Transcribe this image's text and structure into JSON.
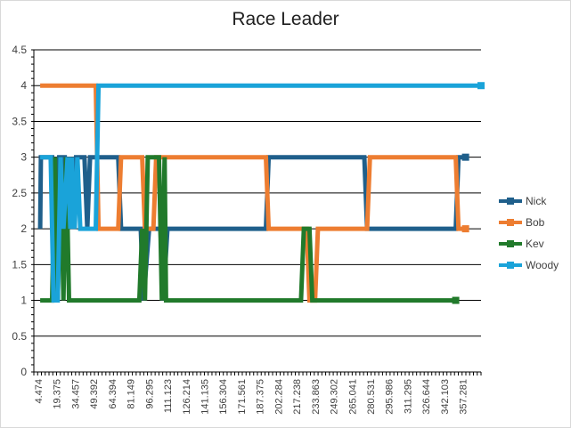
{
  "chart_data": {
    "type": "line",
    "title": "Race Leader",
    "xlabel": "",
    "ylabel": "",
    "ylim": [
      0,
      4.5
    ],
    "yticks": [
      "0",
      "0.5",
      "1",
      "1.5",
      "2",
      "2.5",
      "3",
      "3.5",
      "4",
      "4.5"
    ],
    "xticks": [
      "4.474",
      "19.375",
      "34.457",
      "49.392",
      "64.394",
      "81.149",
      "96.295",
      "111.123",
      "126.214",
      "141.135",
      "156.304",
      "171.561",
      "187.375",
      "202.284",
      "217.238",
      "233.863",
      "249.302",
      "265.041",
      "280.531",
      "295.986",
      "311.295",
      "326.644",
      "342.103",
      "357.281"
    ],
    "grid": "horizontal",
    "legend_position": "right",
    "series": [
      {
        "name": "Nick",
        "color": "#1f5f8b",
        "points": [
          [
            4.474,
            2
          ],
          [
            5,
            3
          ],
          [
            13,
            3
          ],
          [
            14,
            2
          ],
          [
            18,
            3
          ],
          [
            22,
            3
          ],
          [
            23,
            2
          ],
          [
            25,
            3
          ],
          [
            28,
            2
          ],
          [
            30,
            3
          ],
          [
            36,
            3
          ],
          [
            38,
            2
          ],
          [
            40,
            3
          ],
          [
            60,
            3
          ],
          [
            62,
            2
          ],
          [
            76,
            2
          ],
          [
            78,
            1
          ],
          [
            82,
            2
          ],
          [
            90,
            2
          ],
          [
            92,
            1
          ],
          [
            95,
            2
          ],
          [
            165,
            2
          ],
          [
            167,
            3
          ],
          [
            235,
            3
          ],
          [
            237,
            2
          ],
          [
            300,
            2
          ],
          [
            302,
            3
          ],
          [
            307,
            3
          ]
        ]
      },
      {
        "name": "Bob",
        "color": "#ed7d31",
        "points": [
          [
            4.474,
            4
          ],
          [
            44,
            4
          ],
          [
            46,
            2
          ],
          [
            60,
            2
          ],
          [
            62,
            3
          ],
          [
            77,
            3
          ],
          [
            79,
            2
          ],
          [
            85,
            2
          ],
          [
            87,
            3
          ],
          [
            165,
            3
          ],
          [
            167,
            2
          ],
          [
            194,
            2
          ],
          [
            196,
            1
          ],
          [
            200,
            1
          ],
          [
            202,
            2
          ],
          [
            237,
            2
          ],
          [
            239,
            3
          ],
          [
            300,
            3
          ],
          [
            302,
            2
          ],
          [
            307,
            2
          ]
        ]
      },
      {
        "name": "Kev",
        "color": "#217a2b",
        "points": [
          [
            4.474,
            1
          ],
          [
            13,
            1
          ],
          [
            15,
            3
          ],
          [
            17,
            1
          ],
          [
            19,
            3
          ],
          [
            21,
            1
          ],
          [
            23,
            3
          ],
          [
            25,
            1
          ],
          [
            75,
            1
          ],
          [
            77,
            2
          ],
          [
            79,
            1
          ],
          [
            81,
            3
          ],
          [
            89,
            3
          ],
          [
            91,
            1
          ],
          [
            93,
            3
          ],
          [
            94,
            1
          ],
          [
            190,
            1
          ],
          [
            192,
            2
          ],
          [
            196,
            2
          ],
          [
            198,
            1
          ],
          [
            300,
            1
          ]
        ]
      },
      {
        "name": "Woody",
        "color": "#1aa3d9",
        "points": [
          [
            4.474,
            3
          ],
          [
            12,
            3
          ],
          [
            14,
            1
          ],
          [
            17,
            1
          ],
          [
            19,
            3
          ],
          [
            21,
            2
          ],
          [
            24,
            3
          ],
          [
            26,
            2
          ],
          [
            27,
            3
          ],
          [
            29,
            2
          ],
          [
            31,
            3
          ],
          [
            33,
            2
          ],
          [
            44,
            2
          ],
          [
            46,
            4
          ],
          [
            318,
            4
          ]
        ]
      }
    ]
  }
}
